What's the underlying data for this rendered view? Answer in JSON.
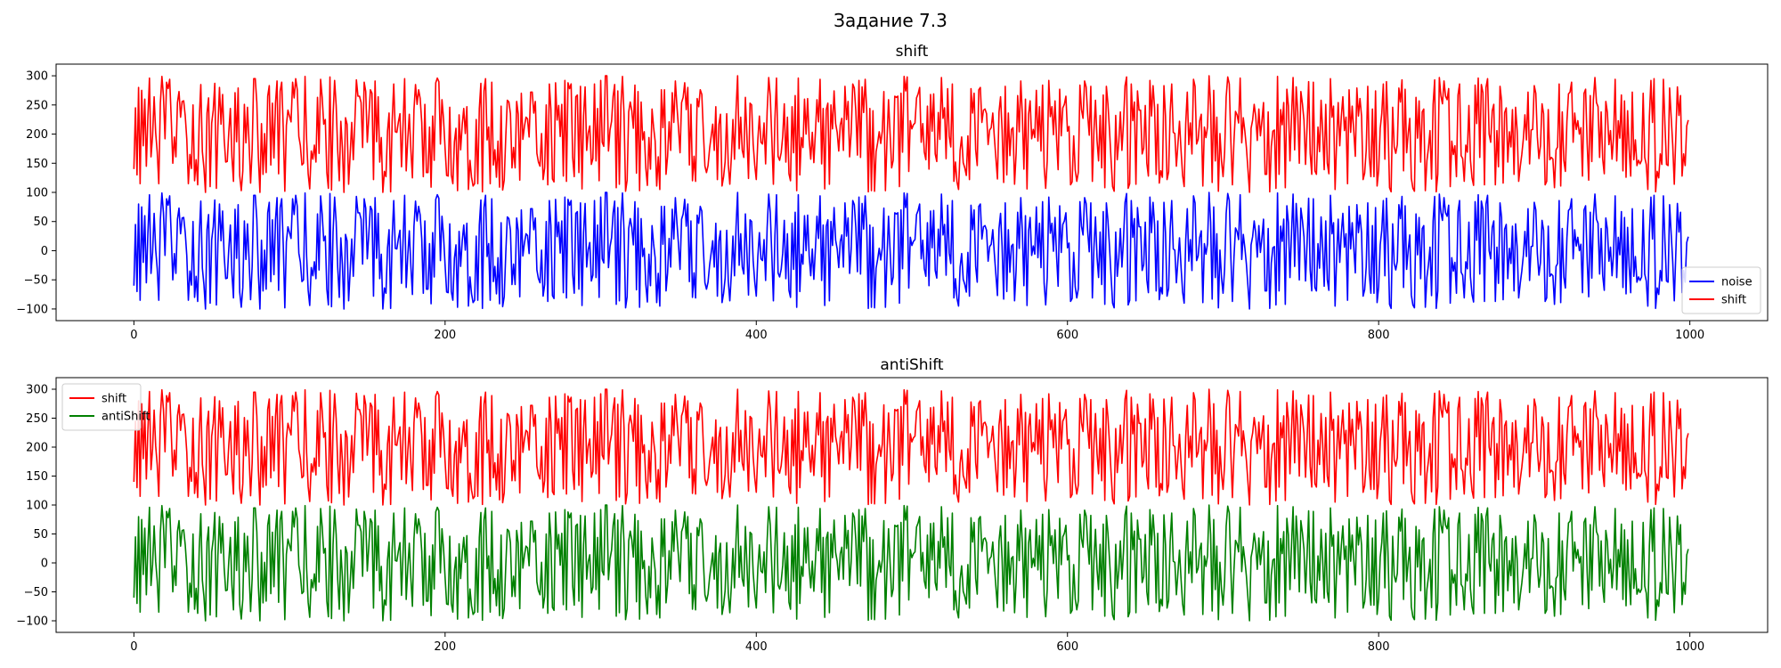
{
  "figure_title": "Задание 7.3",
  "chart_data": [
    {
      "type": "line",
      "title": "shift",
      "xlabel": "",
      "ylabel": "",
      "xlim": [
        -50,
        1050
      ],
      "ylim": [
        -120,
        320
      ],
      "xticks": [
        0,
        200,
        400,
        600,
        800,
        1000
      ],
      "yticks": [
        -100,
        -50,
        0,
        50,
        100,
        150,
        200,
        250,
        300
      ],
      "grid": false,
      "legend_position": "lower right",
      "series": [
        {
          "name": "noise",
          "color": "#0000ff",
          "offset": 0,
          "n": 1000,
          "range": [
            -100,
            100
          ],
          "values_first": [
            -60,
            45,
            -70,
            80,
            -85,
            75,
            -20,
            60,
            -55,
            30
          ]
        },
        {
          "name": "shift",
          "color": "#ff0000",
          "offset": 200,
          "n": 1000,
          "range": [
            100,
            300
          ],
          "values_first": [
            140,
            245,
            130,
            280,
            115,
            275,
            180,
            260,
            145,
            230
          ]
        }
      ]
    },
    {
      "type": "line",
      "title": "antiShift",
      "xlabel": "",
      "ylabel": "",
      "xlim": [
        -50,
        1050
      ],
      "ylim": [
        -120,
        320
      ],
      "xticks": [
        0,
        200,
        400,
        600,
        800,
        1000
      ],
      "yticks": [
        -100,
        -50,
        0,
        50,
        100,
        150,
        200,
        250,
        300
      ],
      "grid": false,
      "legend_position": "upper left",
      "series": [
        {
          "name": "shift",
          "color": "#ff0000",
          "offset": 200,
          "n": 1000,
          "range": [
            100,
            300
          ],
          "values_first": [
            140,
            245,
            130,
            280,
            115,
            275,
            180,
            260,
            145,
            230
          ]
        },
        {
          "name": "antiShift",
          "color": "#008000",
          "offset": 0,
          "n": 1000,
          "range": [
            -100,
            100
          ],
          "values_first": [
            -60,
            45,
            -70,
            80,
            -85,
            75,
            -20,
            60,
            -55,
            30
          ]
        }
      ]
    }
  ]
}
